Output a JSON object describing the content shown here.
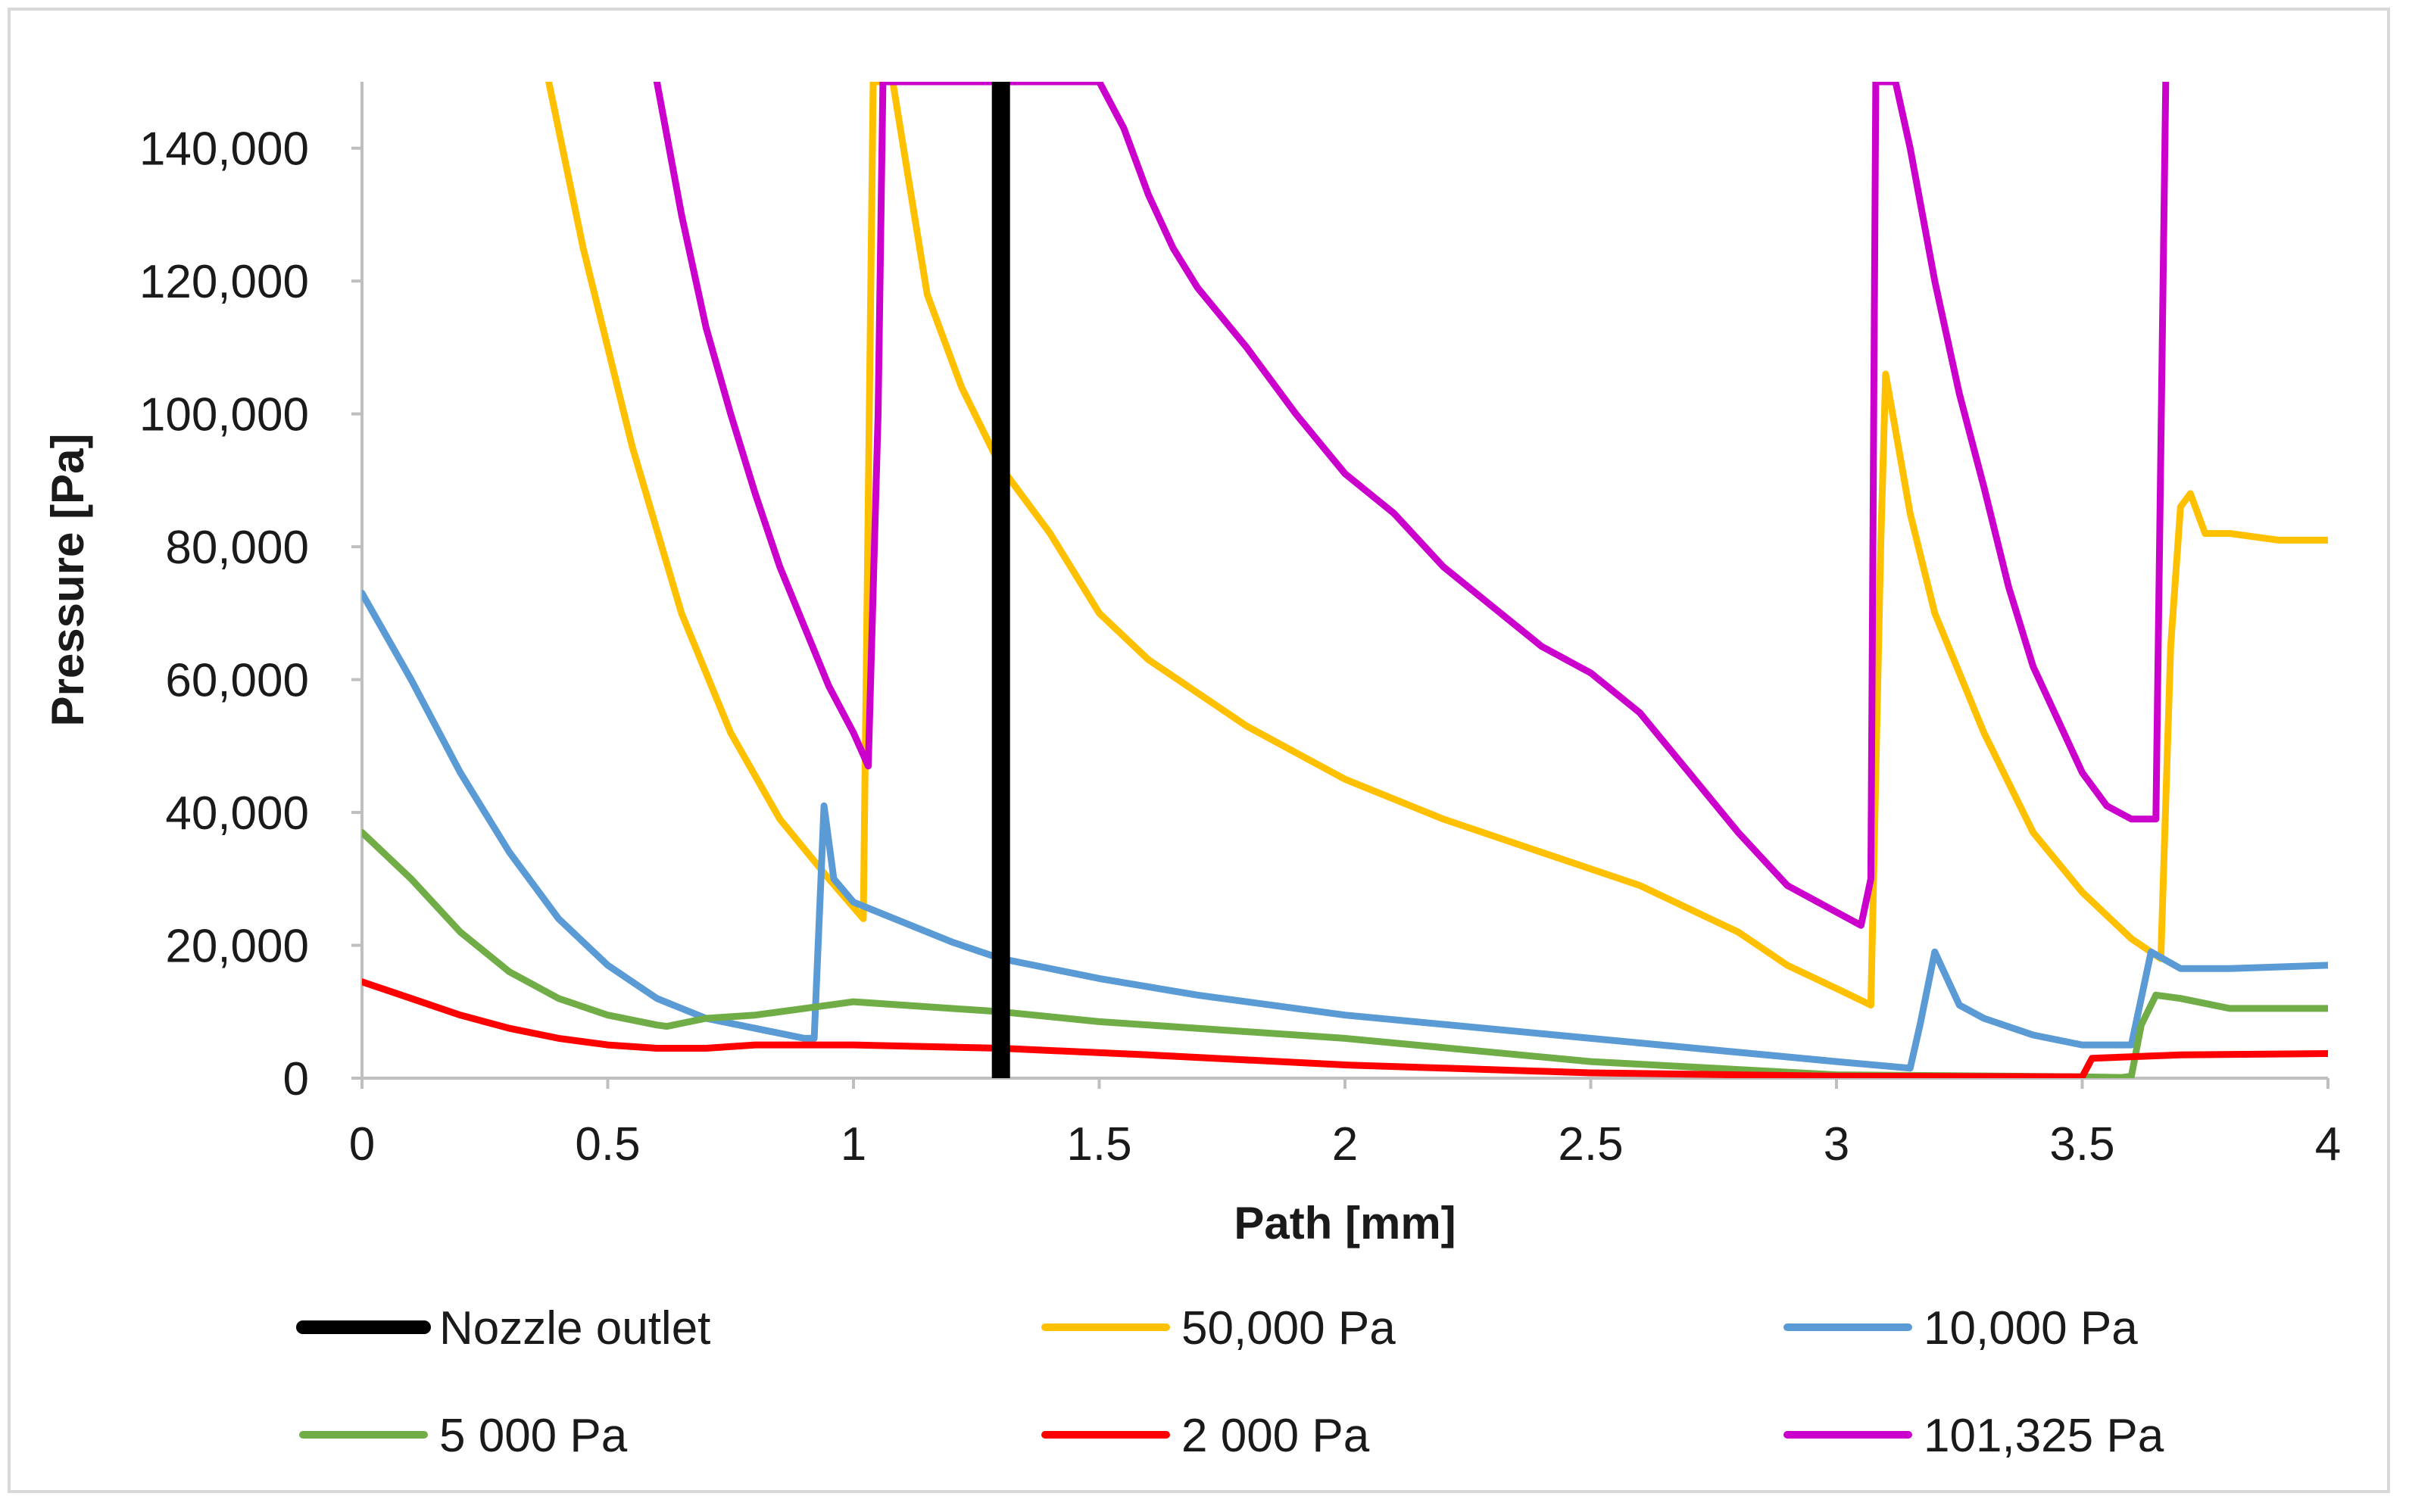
{
  "chart_data": {
    "type": "line",
    "title": "",
    "xlabel": "Path [mm]",
    "ylabel": "Pressure [Pa]",
    "xlim": [
      0,
      4
    ],
    "ylim": [
      0,
      150000
    ],
    "x_ticks": [
      0,
      0.5,
      1,
      1.5,
      2,
      2.5,
      3,
      3.5,
      4
    ],
    "x_tick_labels": [
      "0",
      "0.5",
      "1",
      "1.5",
      "2",
      "2.5",
      "3",
      "3.5",
      "4"
    ],
    "y_ticks": [
      0,
      20000,
      40000,
      60000,
      80000,
      100000,
      120000,
      140000
    ],
    "y_tick_labels": [
      "0",
      "20,000",
      "40,000",
      "60,000",
      "80,000",
      "100,000",
      "120,000",
      "140,000"
    ],
    "grid": false,
    "legend_position": "bottom",
    "nozzle_outlet_x": 1.3,
    "series": [
      {
        "name": "Nozzle outlet",
        "color": "#000000",
        "points": []
      },
      {
        "name": "50,000 Pa",
        "color": "#ffc000",
        "points": [
          [
            0.38,
            150000
          ],
          [
            0.45,
            125000
          ],
          [
            0.55,
            95000
          ],
          [
            0.65,
            70000
          ],
          [
            0.75,
            52000
          ],
          [
            0.85,
            39000
          ],
          [
            0.95,
            30000
          ],
          [
            1.02,
            24000
          ],
          [
            1.04,
            150000
          ],
          [
            1.08,
            150000
          ],
          [
            1.15,
            118000
          ],
          [
            1.22,
            104000
          ],
          [
            1.3,
            92000
          ],
          [
            1.4,
            82000
          ],
          [
            1.5,
            70000
          ],
          [
            1.6,
            63000
          ],
          [
            1.7,
            58000
          ],
          [
            1.8,
            53000
          ],
          [
            1.9,
            49000
          ],
          [
            2.0,
            45000
          ],
          [
            2.2,
            39000
          ],
          [
            2.4,
            34000
          ],
          [
            2.6,
            29000
          ],
          [
            2.8,
            22000
          ],
          [
            2.9,
            17000
          ],
          [
            3.0,
            13500
          ],
          [
            3.07,
            11000
          ],
          [
            3.09,
            80000
          ],
          [
            3.1,
            106000
          ],
          [
            3.15,
            85000
          ],
          [
            3.2,
            70000
          ],
          [
            3.3,
            52000
          ],
          [
            3.4,
            37000
          ],
          [
            3.5,
            28000
          ],
          [
            3.6,
            21000
          ],
          [
            3.66,
            18000
          ],
          [
            3.68,
            65000
          ],
          [
            3.7,
            86000
          ],
          [
            3.72,
            88000
          ],
          [
            3.75,
            82000
          ],
          [
            3.8,
            82000
          ],
          [
            3.9,
            81000
          ],
          [
            4.0,
            81000
          ]
        ]
      },
      {
        "name": "10,000 Pa",
        "color": "#5b9bd5",
        "points": [
          [
            0,
            73000
          ],
          [
            0.1,
            60000
          ],
          [
            0.2,
            46000
          ],
          [
            0.3,
            34000
          ],
          [
            0.4,
            24000
          ],
          [
            0.5,
            17000
          ],
          [
            0.6,
            12000
          ],
          [
            0.7,
            9000
          ],
          [
            0.8,
            7500
          ],
          [
            0.9,
            6000
          ],
          [
            0.92,
            6000
          ],
          [
            0.94,
            41000
          ],
          [
            0.96,
            30000
          ],
          [
            1.0,
            26500
          ],
          [
            1.1,
            23500
          ],
          [
            1.2,
            20500
          ],
          [
            1.3,
            18000
          ],
          [
            1.5,
            15000
          ],
          [
            1.7,
            12500
          ],
          [
            2.0,
            9500
          ],
          [
            2.5,
            6000
          ],
          [
            3.0,
            2500
          ],
          [
            3.15,
            1500
          ],
          [
            3.17,
            8000
          ],
          [
            3.2,
            19000
          ],
          [
            3.25,
            11000
          ],
          [
            3.3,
            9000
          ],
          [
            3.4,
            6500
          ],
          [
            3.5,
            5000
          ],
          [
            3.6,
            5000
          ],
          [
            3.64,
            19000
          ],
          [
            3.7,
            16500
          ],
          [
            3.8,
            16500
          ],
          [
            4.0,
            17000
          ]
        ]
      },
      {
        "name": "5 000 Pa",
        "color": "#70ad47",
        "points": [
          [
            0,
            37000
          ],
          [
            0.1,
            30000
          ],
          [
            0.2,
            22000
          ],
          [
            0.3,
            16000
          ],
          [
            0.4,
            12000
          ],
          [
            0.5,
            9500
          ],
          [
            0.6,
            8000
          ],
          [
            0.62,
            7800
          ],
          [
            0.7,
            9000
          ],
          [
            0.8,
            9500
          ],
          [
            0.9,
            10500
          ],
          [
            1.0,
            11500
          ],
          [
            1.1,
            11000
          ],
          [
            1.3,
            10000
          ],
          [
            1.5,
            8500
          ],
          [
            2.0,
            6000
          ],
          [
            2.5,
            2500
          ],
          [
            3.0,
            500
          ],
          [
            3.5,
            200
          ],
          [
            3.58,
            100
          ],
          [
            3.6,
            300
          ],
          [
            3.62,
            8000
          ],
          [
            3.65,
            12500
          ],
          [
            3.7,
            12000
          ],
          [
            3.8,
            10500
          ],
          [
            4.0,
            10500
          ]
        ]
      },
      {
        "name": "2 000 Pa",
        "color": "#ff0000",
        "points": [
          [
            0,
            14500
          ],
          [
            0.1,
            12000
          ],
          [
            0.2,
            9500
          ],
          [
            0.3,
            7500
          ],
          [
            0.4,
            6000
          ],
          [
            0.5,
            5000
          ],
          [
            0.6,
            4500
          ],
          [
            0.7,
            4500
          ],
          [
            0.8,
            5000
          ],
          [
            1.0,
            5000
          ],
          [
            1.3,
            4500
          ],
          [
            1.6,
            3500
          ],
          [
            2.0,
            2000
          ],
          [
            2.5,
            800
          ],
          [
            3.0,
            300
          ],
          [
            3.5,
            200
          ],
          [
            3.52,
            3000
          ],
          [
            3.7,
            3500
          ],
          [
            4.0,
            3700
          ]
        ]
      },
      {
        "name": "101,325 Pa",
        "color": "#cc00cc",
        "points": [
          [
            0.6,
            150000
          ],
          [
            0.65,
            130000
          ],
          [
            0.7,
            113000
          ],
          [
            0.75,
            100000
          ],
          [
            0.8,
            88000
          ],
          [
            0.85,
            77000
          ],
          [
            0.9,
            68000
          ],
          [
            0.95,
            59000
          ],
          [
            1.0,
            52000
          ],
          [
            1.03,
            47000
          ],
          [
            1.05,
            100000
          ],
          [
            1.06,
            150000
          ],
          [
            1.5,
            150000
          ],
          [
            1.55,
            143000
          ],
          [
            1.6,
            133000
          ],
          [
            1.65,
            125000
          ],
          [
            1.7,
            119000
          ],
          [
            1.8,
            110000
          ],
          [
            1.9,
            100000
          ],
          [
            2.0,
            91000
          ],
          [
            2.1,
            85000
          ],
          [
            2.2,
            77000
          ],
          [
            2.3,
            71000
          ],
          [
            2.4,
            65000
          ],
          [
            2.5,
            61000
          ],
          [
            2.6,
            55000
          ],
          [
            2.7,
            46000
          ],
          [
            2.8,
            37000
          ],
          [
            2.9,
            29000
          ],
          [
            3.0,
            25000
          ],
          [
            3.05,
            23000
          ],
          [
            3.07,
            30000
          ],
          [
            3.08,
            150000
          ],
          [
            3.12,
            150000
          ],
          [
            3.15,
            140000
          ],
          [
            3.2,
            120000
          ],
          [
            3.25,
            103000
          ],
          [
            3.3,
            89000
          ],
          [
            3.35,
            74000
          ],
          [
            3.4,
            62000
          ],
          [
            3.45,
            54000
          ],
          [
            3.5,
            46000
          ],
          [
            3.55,
            41000
          ],
          [
            3.6,
            39000
          ],
          [
            3.65,
            39000
          ],
          [
            3.67,
            150000
          ]
        ]
      }
    ]
  }
}
